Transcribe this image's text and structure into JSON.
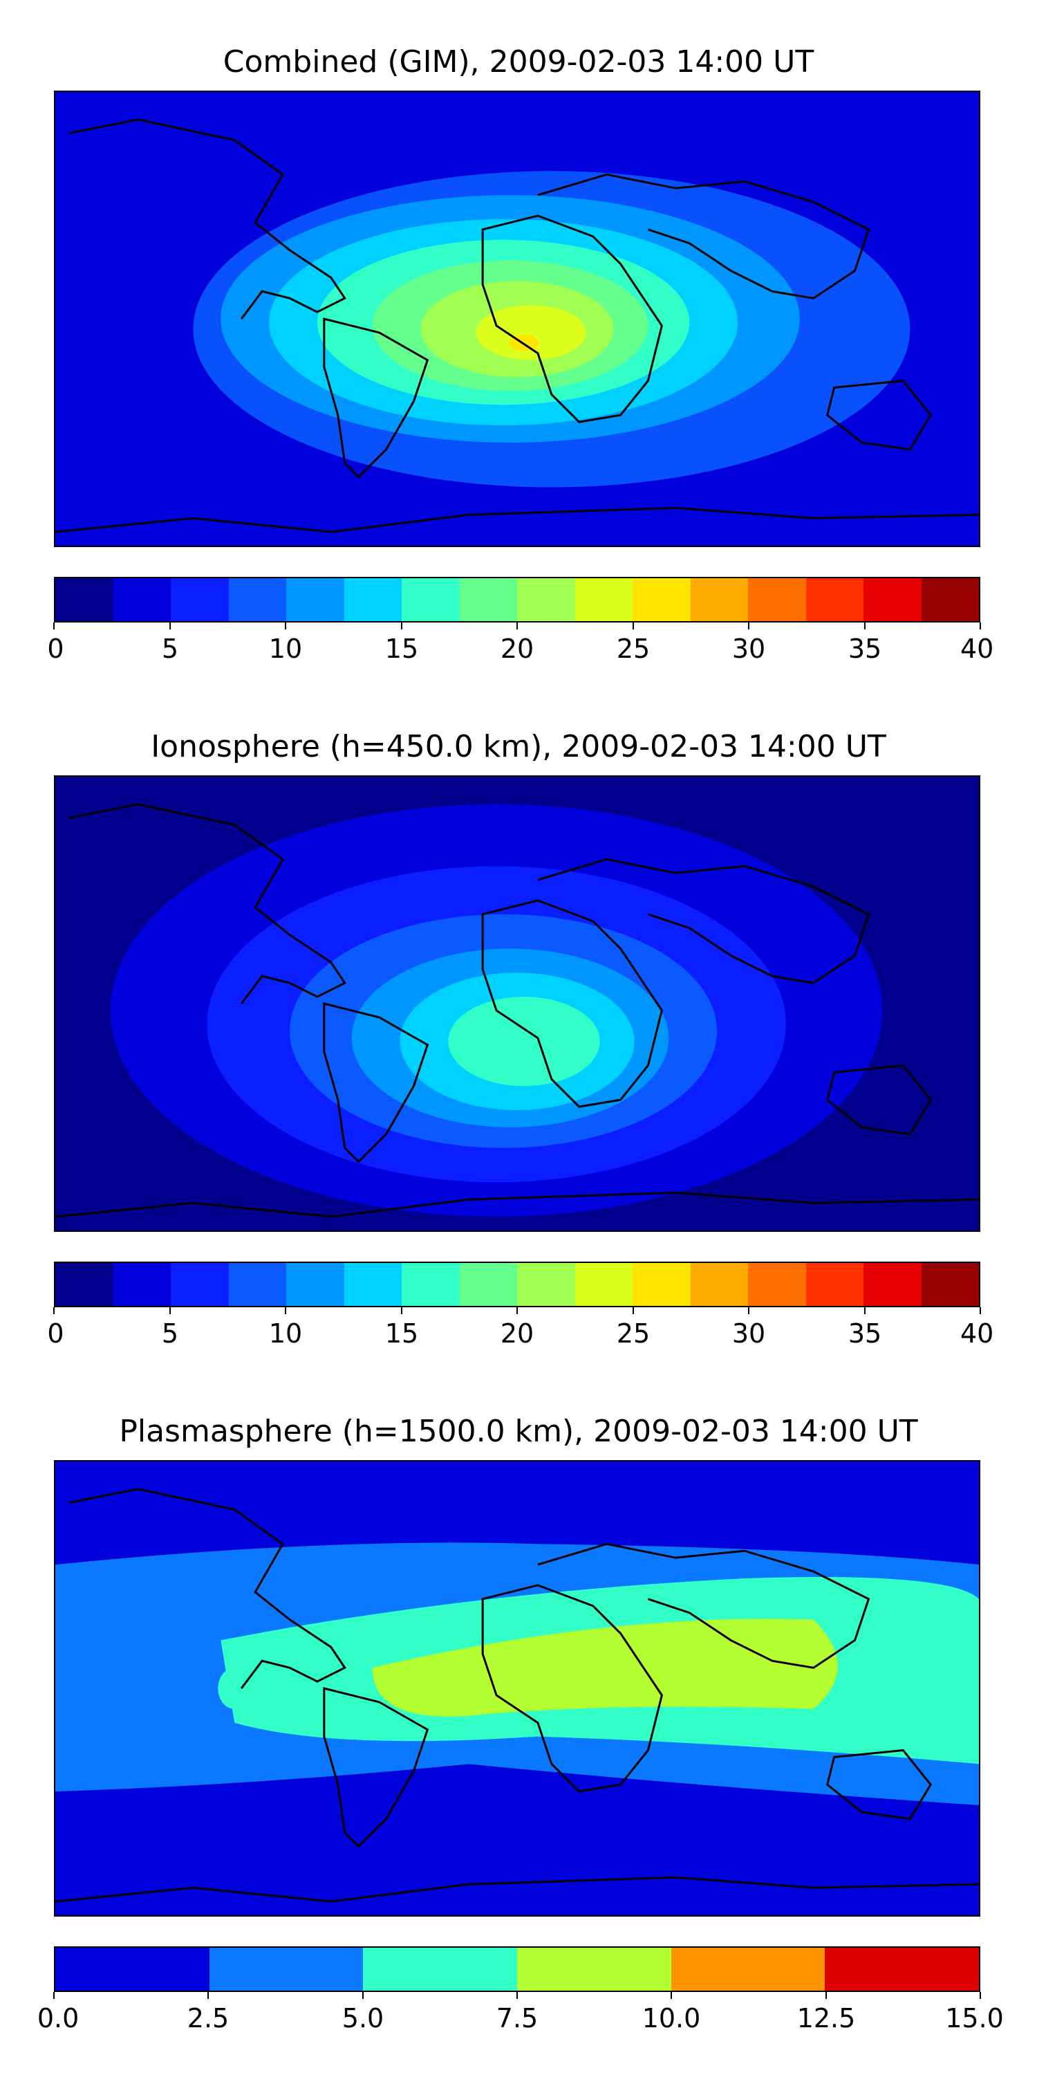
{
  "panels": [
    {
      "title": "Combined (GIM), 2009-02-03 14:00 UT",
      "colorbar": {
        "ticks": [
          "0",
          "5",
          "10",
          "15",
          "20",
          "25",
          "30",
          "35",
          "40"
        ],
        "colors": [
          "#00008c",
          "#0000dc",
          "#0a1eff",
          "#0a5aff",
          "#0096ff",
          "#00d2ff",
          "#32ffc8",
          "#64ff8c",
          "#a0ff50",
          "#dcff1e",
          "#ffe600",
          "#ffaa00",
          "#ff6e00",
          "#ff3200",
          "#e60000",
          "#960000"
        ]
      },
      "fill": {
        "base": "#0000dc",
        "mid": "#0a5aff",
        "hot": "#a0ff50",
        "peak": "#dcff1e"
      }
    },
    {
      "title": "Ionosphere  (h=450.0 km), 2009-02-03 14:00 UT",
      "colorbar": {
        "ticks": [
          "0",
          "5",
          "10",
          "15",
          "20",
          "25",
          "30",
          "35",
          "40"
        ],
        "colors": [
          "#00008c",
          "#0000dc",
          "#0a1eff",
          "#0a5aff",
          "#0096ff",
          "#00d2ff",
          "#32ffc8",
          "#64ff8c",
          "#a0ff50",
          "#dcff1e",
          "#ffe600",
          "#ffaa00",
          "#ff6e00",
          "#ff3200",
          "#e60000",
          "#960000"
        ]
      },
      "fill": {
        "base": "#00008c",
        "mid": "#0a1eff",
        "hot": "#00d2ff",
        "peak": "#32ffc8"
      }
    },
    {
      "title": "Plasmasphere (h=1500.0 km), 2009-02-03 14:00 UT",
      "colorbar": {
        "ticks": [
          "0.0",
          "2.5",
          "5.0",
          "7.5",
          "10.0",
          "12.5",
          "15.0"
        ],
        "colors": [
          "#0000dc",
          "#0a78ff",
          "#32ffc8",
          "#b4ff32",
          "#ff9600",
          "#dc0000"
        ]
      },
      "fill": {
        "base": "#0000dc",
        "mid": "#0a78ff",
        "hot": "#32ffc8",
        "peak": "#b4ff32"
      }
    }
  ]
}
